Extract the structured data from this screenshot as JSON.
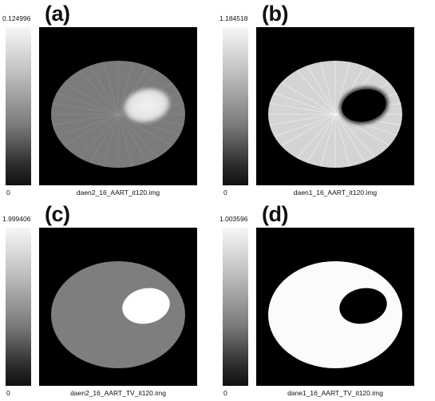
{
  "panels": {
    "a": {
      "label": "(a)",
      "max_value": "0.124996",
      "min_value": "0",
      "filename": "daen2_16_AART_it120.img"
    },
    "b": {
      "label": "(b)",
      "max_value": "1.184518",
      "min_value": "0",
      "filename": "daen1_16_AART_it120.img"
    },
    "c": {
      "label": "(c)",
      "max_value": "1.999406",
      "min_value": "0",
      "filename": "daen2_16_AART_TV_it120.img"
    },
    "d": {
      "label": "(d)",
      "max_value": "1.003596",
      "min_value": "0",
      "filename": "dane1_16_AART_TV_it120.img"
    }
  },
  "colors": {
    "background": "#000000",
    "colorbar_top": "#f7f7f7",
    "colorbar_bottom": "#101010"
  },
  "icons": {
    "colorbar": "grayscale-colorbar-icon",
    "phantom": "elliptical-phantom-icon"
  }
}
